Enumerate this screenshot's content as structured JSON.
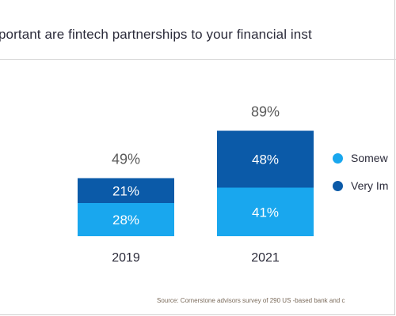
{
  "title": "portant are fintech partnerships to your financial inst",
  "source": "Source: Cornerstone advisors survey of 290 US -based bank and c",
  "colors": {
    "somewhat": "#19A7EE",
    "very": "#0B5AA8",
    "total_text": "#5a5a5a",
    "axis_text": "#2b2b3a"
  },
  "chart_data": {
    "type": "bar",
    "stacked": true,
    "categories": [
      "2019",
      "2021"
    ],
    "series": [
      {
        "name": "Somew",
        "values": [
          28,
          41
        ],
        "labels": [
          "28%",
          "41%"
        ]
      },
      {
        "name": "Very Im",
        "values": [
          21,
          48
        ],
        "labels": [
          "21%",
          "48%"
        ]
      }
    ],
    "totals": [
      49,
      89
    ],
    "total_labels": [
      "49%",
      "89%"
    ],
    "ylim": [
      0,
      100
    ],
    "grid": false,
    "legend": "right"
  }
}
